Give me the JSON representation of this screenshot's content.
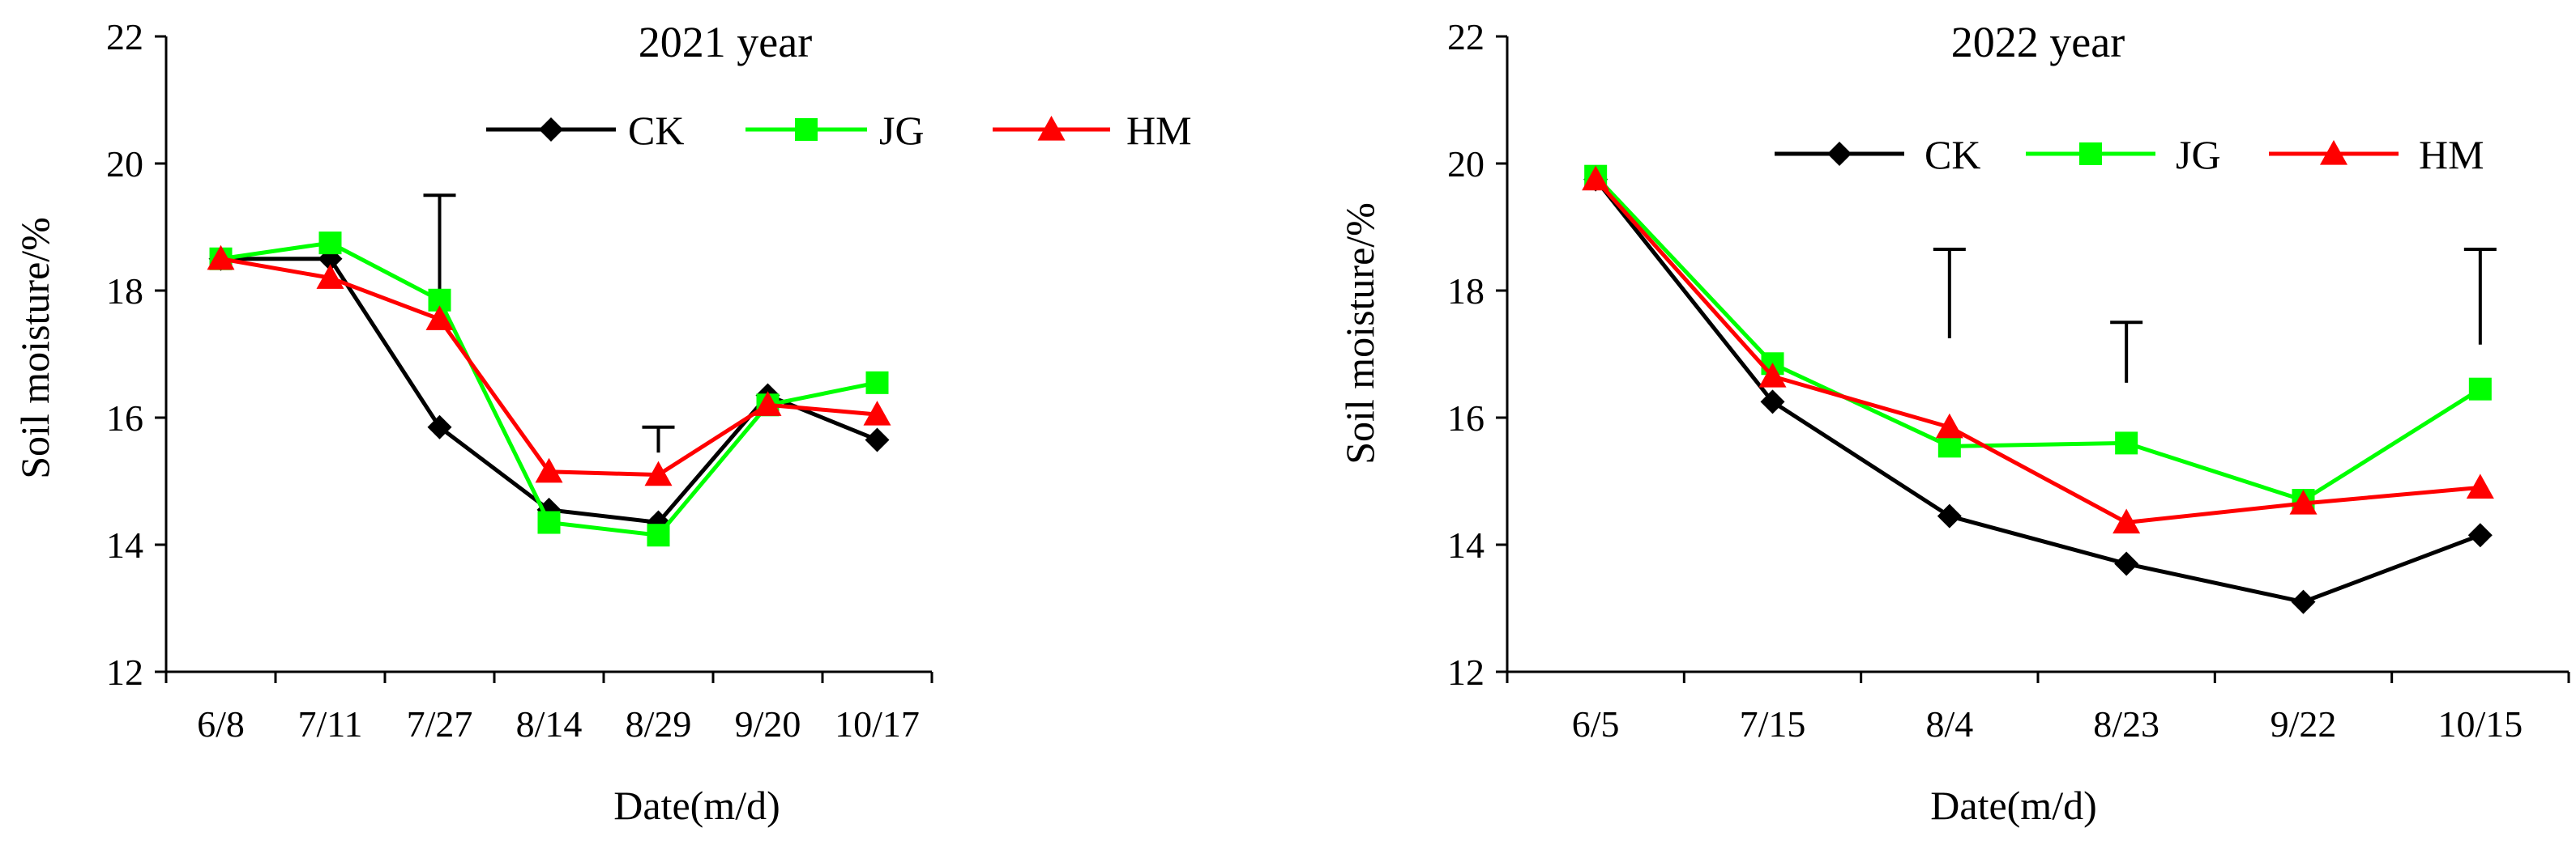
{
  "chart_data": [
    {
      "type": "line",
      "title": "2021 year",
      "xlabel": "Date(m/d)",
      "ylabel": "Soil moisture/%",
      "ylim": [
        12,
        22
      ],
      "yticks": [
        12,
        14,
        16,
        18,
        20,
        22
      ],
      "categories": [
        "6/8",
        "7/11",
        "7/27",
        "8/14",
        "8/29",
        "9/20",
        "10/17"
      ],
      "series": [
        {
          "name": "CK",
          "color": "#000000",
          "marker": "diamond",
          "values": [
            18.5,
            18.5,
            15.85,
            14.55,
            14.35,
            16.35,
            15.65
          ]
        },
        {
          "name": "JG",
          "color": "#00ff00",
          "marker": "square",
          "values": [
            18.5,
            18.75,
            17.85,
            14.35,
            14.15,
            16.2,
            16.55
          ]
        },
        {
          "name": "HM",
          "color": "#ff0000",
          "marker": "triangle",
          "values": [
            18.5,
            18.2,
            17.55,
            15.15,
            15.1,
            16.2,
            16.05
          ]
        }
      ],
      "error_bars": [
        {
          "category": "7/27",
          "low": 17.85,
          "high": 19.5
        },
        {
          "category": "8/29",
          "low": 15.45,
          "high": 15.85
        }
      ],
      "legend": {
        "position": "top-right",
        "items": [
          "CK",
          "JG",
          "HM"
        ]
      }
    },
    {
      "type": "line",
      "title": "2022 year",
      "xlabel": "Date(m/d)",
      "ylabel": "Soil moisture/%",
      "ylim": [
        12,
        22
      ],
      "yticks": [
        12,
        14,
        16,
        18,
        20,
        22
      ],
      "categories": [
        "6/5",
        "7/15",
        "8/4",
        "8/23",
        "9/22",
        "10/15"
      ],
      "series": [
        {
          "name": "CK",
          "color": "#000000",
          "marker": "diamond",
          "values": [
            19.75,
            16.25,
            14.45,
            13.7,
            13.1,
            14.15
          ]
        },
        {
          "name": "JG",
          "color": "#00ff00",
          "marker": "square",
          "values": [
            19.8,
            16.85,
            15.55,
            15.6,
            14.7,
            16.45
          ]
        },
        {
          "name": "HM",
          "color": "#ff0000",
          "marker": "triangle",
          "values": [
            19.75,
            16.65,
            15.85,
            14.35,
            14.65,
            14.9
          ]
        }
      ],
      "error_bars": [
        {
          "category": "8/4",
          "low": 17.25,
          "high": 18.65
        },
        {
          "category": "8/23",
          "low": 16.55,
          "high": 17.5
        },
        {
          "category": "10/15",
          "low": 17.15,
          "high": 18.65
        }
      ],
      "legend": {
        "position": "top-right",
        "items": [
          "CK",
          "JG",
          "HM"
        ]
      }
    }
  ]
}
